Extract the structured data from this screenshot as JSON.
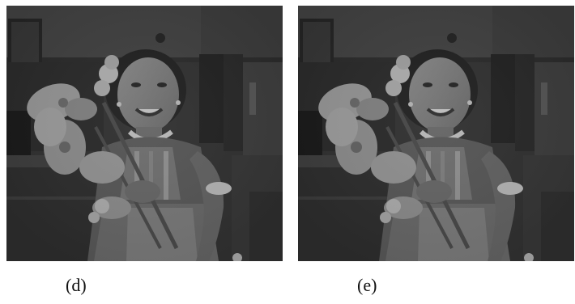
{
  "figure": {
    "panels": [
      {
        "caption": "(d)"
      },
      {
        "caption": "(e)"
      }
    ]
  },
  "colors": {
    "background": "#ffffff",
    "caption_text": "#111111"
  }
}
